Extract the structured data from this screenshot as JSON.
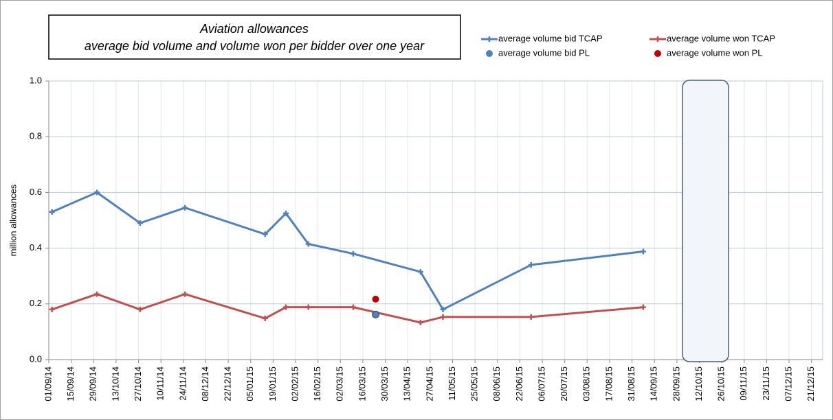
{
  "chart_data": {
    "type": "line",
    "title": [
      "Aviation allowances",
      "average bid volume and volume won per bidder over one year"
    ],
    "y_label": "million allowances",
    "xlim": [
      "01/09/14",
      "28/12/15"
    ],
    "xticks": [
      "01/09/14",
      "15/09/14",
      "29/09/14",
      "13/10/14",
      "27/10/14",
      "10/11/14",
      "24/11/14",
      "08/12/14",
      "22/12/14",
      "05/01/15",
      "19/01/15",
      "02/02/15",
      "16/02/15",
      "02/03/15",
      "16/03/15",
      "30/03/15",
      "13/04/15",
      "27/04/15",
      "11/05/15",
      "25/05/15",
      "08/06/15",
      "22/06/15",
      "06/07/15",
      "20/07/15",
      "03/08/15",
      "17/08/15",
      "31/08/15",
      "14/09/15",
      "28/09/15",
      "12/10/15",
      "26/10/15",
      "09/11/15",
      "23/11/15",
      "07/12/15",
      "21/12/15"
    ],
    "ylim": [
      0,
      1
    ],
    "yticks": [
      {
        "value": 0,
        "label": "0.0"
      },
      0.2,
      0.4,
      0.6,
      0.8,
      {
        "value": 1,
        "label": "1.0"
      }
    ],
    "grid": true,
    "legend": "top-right",
    "series": [
      {
        "name": "average volume bid TCAP",
        "color": "#4f81bd",
        "style": "line",
        "x": [
          "03/09/14",
          "01/10/14",
          "28/10/14",
          "25/11/14",
          "14/01/15",
          "27/01/15",
          "10/02/15",
          "10/03/15",
          "21/04/15",
          "05/05/15",
          "29/06/15",
          "07/09/15"
        ],
        "values": [
          0.53,
          0.6,
          0.49,
          0.545,
          0.45,
          0.525,
          0.415,
          0.38,
          0.315,
          0.18,
          0.34,
          0.388
        ]
      },
      {
        "name": "average volume won TCAP",
        "color": "#c0504d",
        "style": "line",
        "x": [
          "03/09/14",
          "01/10/14",
          "28/10/14",
          "25/11/14",
          "14/01/15",
          "27/01/15",
          "10/02/15",
          "10/03/15",
          "21/04/15",
          "05/05/15",
          "29/06/15",
          "07/09/15"
        ],
        "values": [
          0.18,
          0.235,
          0.18,
          0.235,
          0.148,
          0.188,
          0.188,
          0.188,
          0.133,
          0.153,
          0.153,
          0.188
        ]
      },
      {
        "name": "average volume bid PL",
        "color": "#4f81bd",
        "style": "dot",
        "x": [
          "24/03/15"
        ],
        "values": [
          0.162
        ]
      },
      {
        "name": "average volume won PL",
        "color": "#c00000",
        "style": "dot",
        "x": [
          "24/03/15"
        ],
        "values": [
          0.217
        ]
      }
    ]
  }
}
